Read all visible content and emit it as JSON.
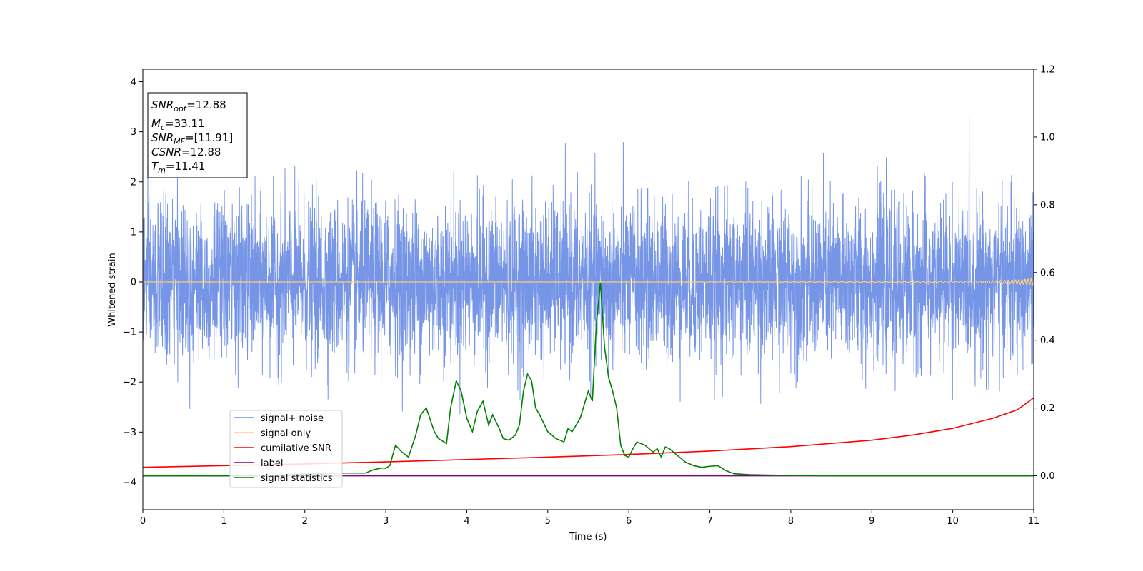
{
  "chart_data": {
    "type": "line",
    "title": "",
    "xlabel": "Time (s)",
    "ylabel": "Whitened strain",
    "xlim": [
      0,
      11
    ],
    "ylim": [
      -4.55,
      4.25
    ],
    "y2lim": [
      -0.1,
      1.2
    ],
    "xticks": [
      "0",
      "1",
      "2",
      "3",
      "4",
      "5",
      "6",
      "7",
      "8",
      "9",
      "10",
      "11"
    ],
    "yticks": [
      "−4",
      "−3",
      "−2",
      "−1",
      "0",
      "1",
      "2",
      "3",
      "4"
    ],
    "y2ticks": [
      "0.0",
      "0.2",
      "0.4",
      "0.6",
      "0.8",
      "1.0",
      "1.2"
    ],
    "grid": false,
    "legend_position": "lower-left",
    "annotation": {
      "snr_opt": {
        "base": "SNR",
        "sub": "opt",
        "value": "=12.88"
      },
      "mc": {
        "base": "M",
        "sub": "c",
        "value": "=33.11"
      },
      "snr_mf": {
        "base": "SNR",
        "sub": "MF",
        "value": "=[11.91]"
      },
      "csnr": {
        "base": "CSNR",
        "value": "=12.88"
      },
      "tm": {
        "base": "T",
        "sub": "m",
        "value": "=11.41"
      }
    },
    "series": [
      {
        "name": "signal+ noise",
        "color": "#6f8fe6",
        "axis": "left",
        "style": "noise",
        "amplitude_std": 1.0
      },
      {
        "name": "signal only",
        "color": "#ffcf7a",
        "axis": "left",
        "style": "chirp",
        "amplitude_end": 0.2
      },
      {
        "name": "cumilative SNR",
        "color": "#ff0000",
        "axis": "right",
        "x": [
          0,
          1,
          2,
          3,
          4,
          5,
          6,
          7,
          8,
          9,
          9.5,
          10,
          10.5,
          10.8,
          11
        ],
        "values": [
          0.025,
          0.03,
          0.035,
          0.041,
          0.048,
          0.055,
          0.063,
          0.073,
          0.086,
          0.105,
          0.12,
          0.14,
          0.17,
          0.195,
          0.23
        ]
      },
      {
        "name": "label",
        "color": "#800080",
        "axis": "right",
        "x": [
          0,
          11
        ],
        "values": [
          0,
          0
        ]
      },
      {
        "name": "signal statistics",
        "color": "#008000",
        "axis": "right",
        "x": [
          0,
          0.5,
          1,
          1.5,
          2,
          2.5,
          2.75,
          2.85,
          2.95,
          3.0,
          3.05,
          3.12,
          3.2,
          3.28,
          3.37,
          3.43,
          3.5,
          3.6,
          3.65,
          3.75,
          3.8,
          3.87,
          3.93,
          4.0,
          4.07,
          4.13,
          4.2,
          4.27,
          4.32,
          4.4,
          4.45,
          4.52,
          4.6,
          4.65,
          4.7,
          4.75,
          4.8,
          4.85,
          4.9,
          5.0,
          5.1,
          5.2,
          5.25,
          5.3,
          5.4,
          5.5,
          5.55,
          5.6,
          5.65,
          5.7,
          5.75,
          5.8,
          5.85,
          5.9,
          5.95,
          6.0,
          6.05,
          6.1,
          6.2,
          6.3,
          6.35,
          6.4,
          6.45,
          6.5,
          6.6,
          6.7,
          6.8,
          6.9,
          7.0,
          7.1,
          7.2,
          7.3,
          7.5,
          7.7,
          8.0,
          8.5,
          9.0,
          10.0,
          11.0
        ],
        "values": [
          0.0,
          0.0,
          0.0,
          0.0,
          0.005,
          0.008,
          0.008,
          0.018,
          0.023,
          0.022,
          0.03,
          0.09,
          0.07,
          0.055,
          0.12,
          0.18,
          0.2,
          0.13,
          0.11,
          0.095,
          0.2,
          0.28,
          0.25,
          0.17,
          0.13,
          0.19,
          0.22,
          0.15,
          0.18,
          0.14,
          0.11,
          0.105,
          0.12,
          0.15,
          0.25,
          0.3,
          0.28,
          0.2,
          0.18,
          0.13,
          0.11,
          0.1,
          0.14,
          0.13,
          0.17,
          0.25,
          0.22,
          0.45,
          0.57,
          0.38,
          0.29,
          0.25,
          0.2,
          0.09,
          0.06,
          0.055,
          0.08,
          0.1,
          0.09,
          0.07,
          0.08,
          0.055,
          0.085,
          0.08,
          0.06,
          0.04,
          0.03,
          0.025,
          0.028,
          0.03,
          0.015,
          0.006,
          0.003,
          0.002,
          0.001,
          0.0,
          0.0,
          0.0,
          0.0
        ]
      }
    ]
  }
}
